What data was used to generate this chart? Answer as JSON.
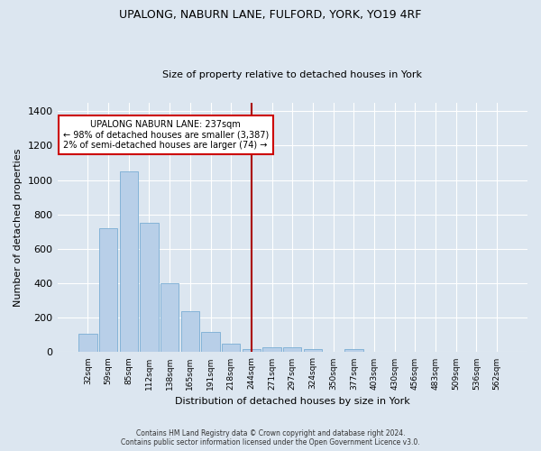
{
  "title1": "UPALONG, NABURN LANE, FULFORD, YORK, YO19 4RF",
  "title2": "Size of property relative to detached houses in York",
  "xlabel": "Distribution of detached houses by size in York",
  "ylabel": "Number of detached properties",
  "categories": [
    "32sqm",
    "59sqm",
    "85sqm",
    "112sqm",
    "138sqm",
    "165sqm",
    "191sqm",
    "218sqm",
    "244sqm",
    "271sqm",
    "297sqm",
    "324sqm",
    "350sqm",
    "377sqm",
    "403sqm",
    "430sqm",
    "456sqm",
    "483sqm",
    "509sqm",
    "536sqm",
    "562sqm"
  ],
  "values": [
    107,
    720,
    1050,
    750,
    400,
    240,
    120,
    50,
    20,
    30,
    30,
    20,
    0,
    20,
    0,
    0,
    0,
    0,
    0,
    0,
    0
  ],
  "bar_color": "#b8cfe8",
  "bar_edge_color": "#7aadd4",
  "vline_x": 8,
  "vline_color": "#aa0000",
  "annotation_title": "UPALONG NABURN LANE: 237sqm",
  "annotation_line1": "← 98% of detached houses are smaller (3,387)",
  "annotation_line2": "2% of semi-detached houses are larger (74) →",
  "annotation_box_color": "#ffffff",
  "annotation_box_edge": "#cc0000",
  "bg_color": "#dce6f0",
  "grid_color": "#ffffff",
  "fig_bg_color": "#dce6f0",
  "ylim": [
    0,
    1450
  ],
  "yticks": [
    0,
    200,
    400,
    600,
    800,
    1000,
    1200,
    1400
  ],
  "footer1": "Contains HM Land Registry data © Crown copyright and database right 2024.",
  "footer2": "Contains public sector information licensed under the Open Government Licence v3.0."
}
